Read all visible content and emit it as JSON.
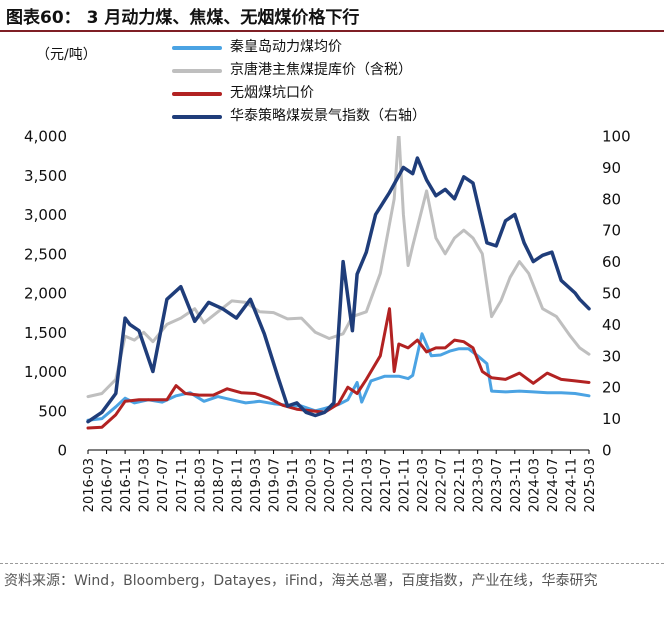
{
  "title": "图表60： 3 月动力煤、焦煤、无烟煤价格下行",
  "unit": "（元/吨）",
  "source": "资料来源：Wind，Bloomberg，Datayes，iFind，海关总署，百度指数，产业在线，华泰研究",
  "colors": {
    "title_rule": "#7f1f25",
    "qhd": "#4ba3e3",
    "jt": "#bfbfbf",
    "anthracite": "#b22222",
    "index": "#1f3d7a"
  },
  "chart_data": {
    "type": "line",
    "title": "3 月动力煤、焦煤、无烟煤价格下行",
    "ylabel": "（元/吨）",
    "ylim": [
      0,
      4000
    ],
    "yticks": [
      "0",
      "500",
      "1,000",
      "1,500",
      "2,000",
      "2,500",
      "3,000",
      "3,500",
      "4,000"
    ],
    "y2lim": [
      0,
      100
    ],
    "y2ticks": [
      "0",
      "10",
      "20",
      "30",
      "40",
      "50",
      "60",
      "70",
      "80",
      "90",
      "100"
    ],
    "xticks": [
      "2016-03",
      "2016-07",
      "2016-11",
      "2017-03",
      "2017-07",
      "2017-11",
      "2018-03",
      "2018-07",
      "2018-11",
      "2019-03",
      "2019-07",
      "2019-11",
      "2020-03",
      "2020-07",
      "2020-11",
      "2021-03",
      "2021-07",
      "2021-11",
      "2022-03",
      "2022-07",
      "2022-11",
      "2023-03",
      "2023-07",
      "2023-11",
      "2024-03",
      "2024-07",
      "2024-11",
      "2025-03"
    ],
    "grid": false,
    "legend_position": "top-center",
    "series": [
      {
        "name": "秦皇岛动力煤均价",
        "axis": "left",
        "points": [
          [
            "2016-03",
            380
          ],
          [
            "2016-06",
            400
          ],
          [
            "2016-09",
            550
          ],
          [
            "2016-11",
            660
          ],
          [
            "2017-01",
            600
          ],
          [
            "2017-04",
            640
          ],
          [
            "2017-07",
            610
          ],
          [
            "2017-10",
            690
          ],
          [
            "2018-01",
            730
          ],
          [
            "2018-04",
            620
          ],
          [
            "2018-07",
            680
          ],
          [
            "2018-10",
            640
          ],
          [
            "2019-01",
            600
          ],
          [
            "2019-04",
            620
          ],
          [
            "2019-07",
            590
          ],
          [
            "2019-10",
            570
          ],
          [
            "2020-01",
            560
          ],
          [
            "2020-04",
            500
          ],
          [
            "2020-06",
            530
          ],
          [
            "2020-09",
            580
          ],
          [
            "2020-11",
            640
          ],
          [
            "2021-01",
            860
          ],
          [
            "2021-02",
            610
          ],
          [
            "2021-04",
            880
          ],
          [
            "2021-07",
            940
          ],
          [
            "2021-10",
            940
          ],
          [
            "2021-12",
            910
          ],
          [
            "2022-01",
            950
          ],
          [
            "2022-03",
            1480
          ],
          [
            "2022-05",
            1200
          ],
          [
            "2022-07",
            1210
          ],
          [
            "2022-09",
            1260
          ],
          [
            "2022-11",
            1290
          ],
          [
            "2023-01",
            1290
          ],
          [
            "2023-03",
            1200
          ],
          [
            "2023-05",
            1100
          ],
          [
            "2023-06",
            750
          ],
          [
            "2023-09",
            740
          ],
          [
            "2023-12",
            750
          ],
          [
            "2024-03",
            740
          ],
          [
            "2024-06",
            730
          ],
          [
            "2024-09",
            730
          ],
          [
            "2024-12",
            720
          ],
          [
            "2025-03",
            690
          ]
        ]
      },
      {
        "name": "京唐港主焦煤提库价（含税）",
        "axis": "left",
        "points": [
          [
            "2016-03",
            680
          ],
          [
            "2016-06",
            720
          ],
          [
            "2016-09",
            900
          ],
          [
            "2016-11",
            1450
          ],
          [
            "2017-01",
            1400
          ],
          [
            "2017-03",
            1500
          ],
          [
            "2017-05",
            1380
          ],
          [
            "2017-08",
            1600
          ],
          [
            "2017-11",
            1680
          ],
          [
            "2018-02",
            1800
          ],
          [
            "2018-04",
            1620
          ],
          [
            "2018-07",
            1760
          ],
          [
            "2018-10",
            1900
          ],
          [
            "2019-01",
            1880
          ],
          [
            "2019-04",
            1760
          ],
          [
            "2019-07",
            1750
          ],
          [
            "2019-10",
            1670
          ],
          [
            "2020-01",
            1680
          ],
          [
            "2020-04",
            1500
          ],
          [
            "2020-07",
            1420
          ],
          [
            "2020-10",
            1480
          ],
          [
            "2020-12",
            1700
          ],
          [
            "2021-03",
            1760
          ],
          [
            "2021-06",
            2250
          ],
          [
            "2021-09",
            3200
          ],
          [
            "2021-10",
            4050
          ],
          [
            "2021-11",
            3000
          ],
          [
            "2021-12",
            2350
          ],
          [
            "2022-01",
            2600
          ],
          [
            "2022-04",
            3300
          ],
          [
            "2022-06",
            2700
          ],
          [
            "2022-08",
            2500
          ],
          [
            "2022-10",
            2700
          ],
          [
            "2022-12",
            2800
          ],
          [
            "2023-02",
            2700
          ],
          [
            "2023-04",
            2500
          ],
          [
            "2023-06",
            1700
          ],
          [
            "2023-08",
            1900
          ],
          [
            "2023-10",
            2200
          ],
          [
            "2023-12",
            2400
          ],
          [
            "2024-02",
            2250
          ],
          [
            "2024-05",
            1800
          ],
          [
            "2024-08",
            1700
          ],
          [
            "2024-11",
            1450
          ],
          [
            "2025-01",
            1300
          ],
          [
            "2025-03",
            1220
          ]
        ]
      },
      {
        "name": "无烟煤坑口价",
        "axis": "left",
        "points": [
          [
            "2016-03",
            280
          ],
          [
            "2016-06",
            290
          ],
          [
            "2016-09",
            450
          ],
          [
            "2016-11",
            620
          ],
          [
            "2017-02",
            640
          ],
          [
            "2017-05",
            640
          ],
          [
            "2017-08",
            640
          ],
          [
            "2017-10",
            820
          ],
          [
            "2017-12",
            720
          ],
          [
            "2018-03",
            700
          ],
          [
            "2018-06",
            700
          ],
          [
            "2018-09",
            780
          ],
          [
            "2018-12",
            730
          ],
          [
            "2019-03",
            720
          ],
          [
            "2019-06",
            660
          ],
          [
            "2019-09",
            570
          ],
          [
            "2019-12",
            520
          ],
          [
            "2020-03",
            500
          ],
          [
            "2020-06",
            480
          ],
          [
            "2020-09",
            590
          ],
          [
            "2020-11",
            800
          ],
          [
            "2021-01",
            720
          ],
          [
            "2021-03",
            900
          ],
          [
            "2021-06",
            1200
          ],
          [
            "2021-08",
            1800
          ],
          [
            "2021-09",
            1000
          ],
          [
            "2021-10",
            1350
          ],
          [
            "2021-12",
            1300
          ],
          [
            "2022-02",
            1400
          ],
          [
            "2022-04",
            1250
          ],
          [
            "2022-06",
            1300
          ],
          [
            "2022-08",
            1300
          ],
          [
            "2022-10",
            1400
          ],
          [
            "2022-12",
            1380
          ],
          [
            "2023-02",
            1300
          ],
          [
            "2023-04",
            1000
          ],
          [
            "2023-06",
            920
          ],
          [
            "2023-09",
            900
          ],
          [
            "2023-12",
            980
          ],
          [
            "2024-03",
            850
          ],
          [
            "2024-06",
            980
          ],
          [
            "2024-09",
            900
          ],
          [
            "2024-12",
            880
          ],
          [
            "2025-03",
            860
          ]
        ]
      },
      {
        "name": "华泰策略煤炭景气指数（右轴）",
        "axis": "right",
        "points": [
          [
            "2016-03",
            9
          ],
          [
            "2016-06",
            12
          ],
          [
            "2016-09",
            18
          ],
          [
            "2016-11",
            42
          ],
          [
            "2016-12",
            40
          ],
          [
            "2017-02",
            38
          ],
          [
            "2017-05",
            25
          ],
          [
            "2017-08",
            48
          ],
          [
            "2017-11",
            52
          ],
          [
            "2018-02",
            41
          ],
          [
            "2018-05",
            47
          ],
          [
            "2018-08",
            45
          ],
          [
            "2018-11",
            42
          ],
          [
            "2019-02",
            48
          ],
          [
            "2019-05",
            37
          ],
          [
            "2019-08",
            23
          ],
          [
            "2019-10",
            14
          ],
          [
            "2019-12",
            15
          ],
          [
            "2020-02",
            12
          ],
          [
            "2020-04",
            11
          ],
          [
            "2020-06",
            12
          ],
          [
            "2020-08",
            15
          ],
          [
            "2020-10",
            60
          ],
          [
            "2020-12",
            38
          ],
          [
            "2021-01",
            56
          ],
          [
            "2021-03",
            63
          ],
          [
            "2021-05",
            75
          ],
          [
            "2021-08",
            82
          ],
          [
            "2021-11",
            90
          ],
          [
            "2022-01",
            88
          ],
          [
            "2022-02",
            93
          ],
          [
            "2022-04",
            86
          ],
          [
            "2022-06",
            81
          ],
          [
            "2022-08",
            83
          ],
          [
            "2022-10",
            80
          ],
          [
            "2022-12",
            87
          ],
          [
            "2023-02",
            85
          ],
          [
            "2023-05",
            66
          ],
          [
            "2023-07",
            65
          ],
          [
            "2023-09",
            73
          ],
          [
            "2023-11",
            75
          ],
          [
            "2024-01",
            66
          ],
          [
            "2024-03",
            60
          ],
          [
            "2024-05",
            62
          ],
          [
            "2024-07",
            63
          ],
          [
            "2024-09",
            54
          ],
          [
            "2024-12",
            50
          ],
          [
            "2025-01",
            48
          ],
          [
            "2025-03",
            45
          ]
        ]
      }
    ]
  }
}
